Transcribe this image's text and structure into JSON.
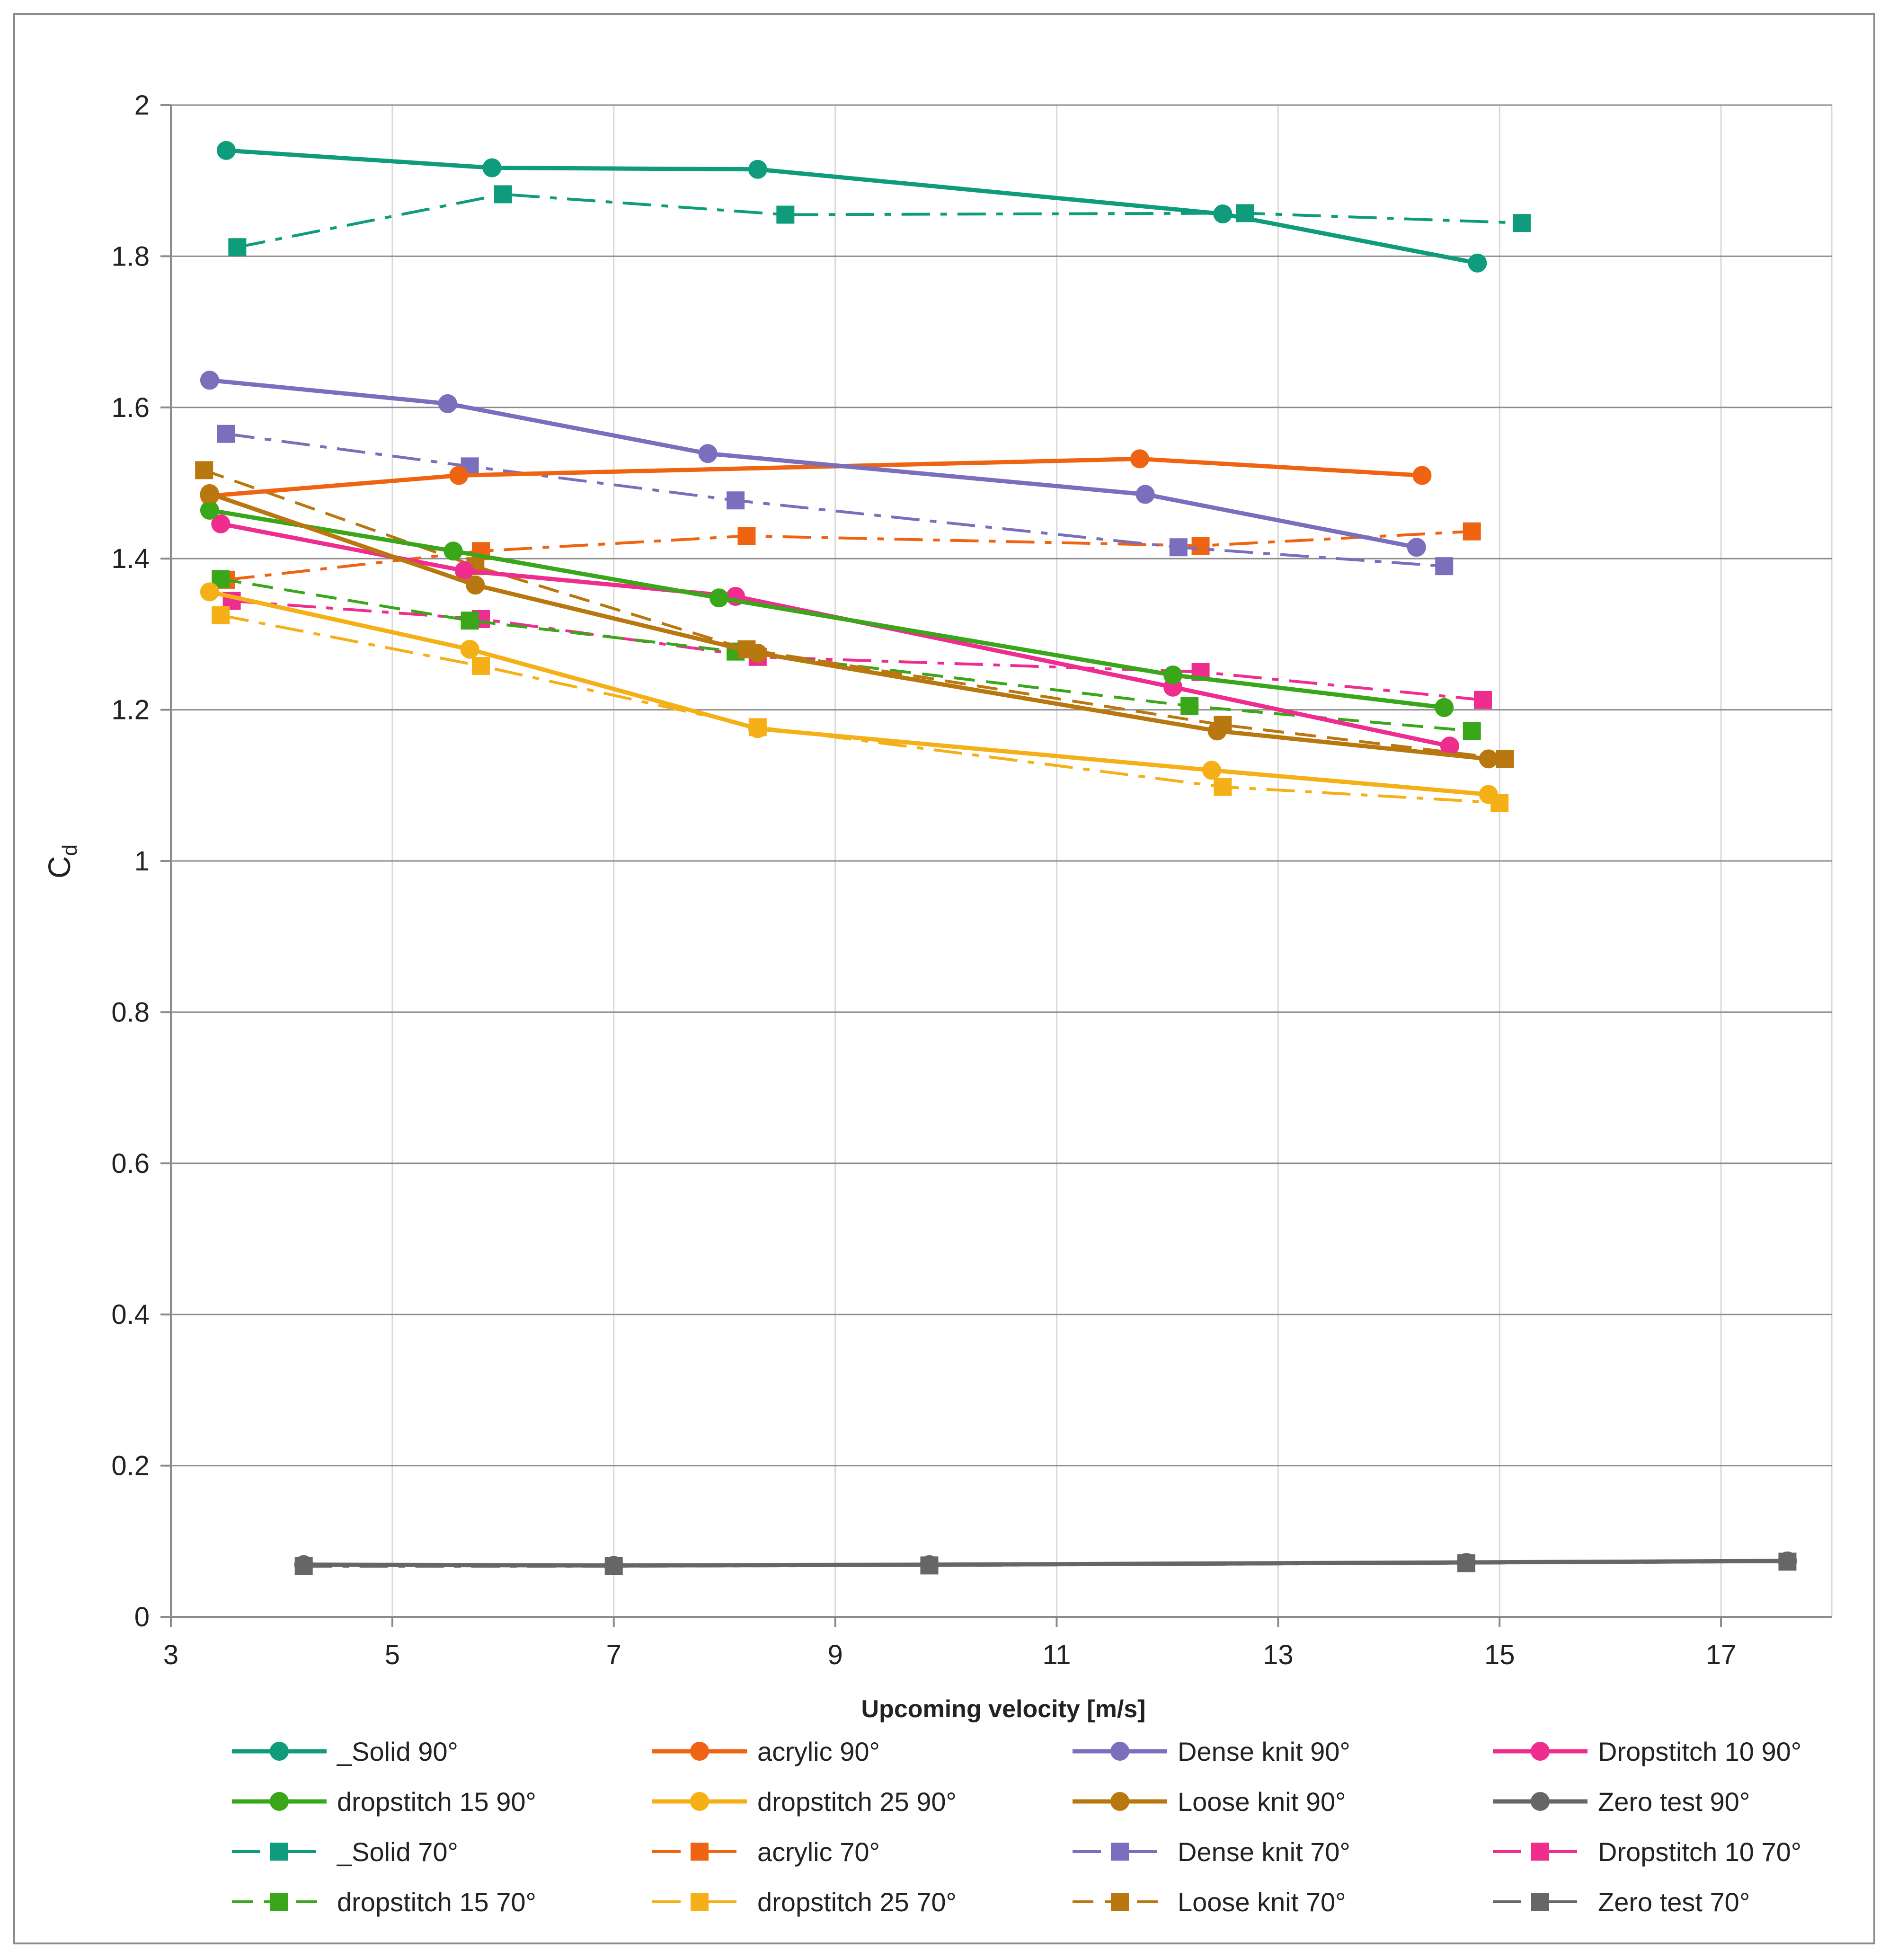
{
  "chart_data": {
    "type": "line",
    "title": "",
    "xlabel": "Upcoming velocity [m/s]",
    "ylabel_main": "C",
    "ylabel_sub": "d",
    "xlim": [
      3,
      18
    ],
    "ylim": [
      0,
      2
    ],
    "xticks": [
      3,
      5,
      7,
      9,
      11,
      13,
      15,
      17
    ],
    "yticks": [
      0,
      0.2,
      0.4,
      0.6,
      0.8,
      1,
      1.2,
      1.4,
      1.6,
      1.8,
      2
    ],
    "ytick_labels": [
      "0",
      "0.2",
      "0.4",
      "0.6",
      "0.8",
      "1",
      "1.2",
      "1.4",
      "1.6",
      "1.8",
      "2"
    ],
    "grid": true,
    "legend_placement": "bottom",
    "series": [
      {
        "name": "_Solid 90°",
        "color": "#0f9c7c",
        "marker": "circle",
        "dash": "solid",
        "x": [
          3.5,
          5.9,
          8.3,
          12.5,
          14.8
        ],
        "y": [
          1.94,
          1.917,
          1.915,
          1.856,
          1.791
        ]
      },
      {
        "name": "acrylic 90°",
        "color": "#ef6412",
        "marker": "circle",
        "dash": "solid",
        "x": [
          3.35,
          5.6,
          11.75,
          14.3
        ],
        "y": [
          1.483,
          1.51,
          1.532,
          1.51
        ]
      },
      {
        "name": "Dense knit 90°",
        "color": "#7b6fbd",
        "marker": "circle",
        "dash": "solid",
        "x": [
          3.35,
          5.5,
          7.85,
          11.8,
          14.25
        ],
        "y": [
          1.636,
          1.605,
          1.539,
          1.485,
          1.415
        ]
      },
      {
        "name": "Dropstitch 10 90°",
        "color": "#ee2d8f",
        "marker": "circle",
        "dash": "solid",
        "x": [
          3.45,
          5.65,
          8.1,
          12.05,
          14.55
        ],
        "y": [
          1.446,
          1.384,
          1.35,
          1.23,
          1.152
        ]
      },
      {
        "name": "dropstitch 15 90°",
        "color": "#3aa61a",
        "marker": "circle",
        "dash": "solid",
        "x": [
          3.35,
          5.55,
          7.95,
          12.05,
          14.5
        ],
        "y": [
          1.464,
          1.41,
          1.348,
          1.246,
          1.203
        ]
      },
      {
        "name": "dropstitch 25 90°",
        "color": "#f5b017",
        "marker": "circle",
        "dash": "solid",
        "x": [
          3.35,
          5.7,
          8.3,
          12.4,
          14.9
        ],
        "y": [
          1.356,
          1.28,
          1.175,
          1.12,
          1.088
        ]
      },
      {
        "name": "Loose knit 90°",
        "color": "#b8770f",
        "marker": "circle",
        "dash": "solid",
        "x": [
          3.35,
          5.75,
          8.3,
          12.45,
          14.9
        ],
        "y": [
          1.486,
          1.365,
          1.275,
          1.172,
          1.135
        ]
      },
      {
        "name": "Zero test 90°",
        "color": "#666666",
        "marker": "circle",
        "dash": "solid",
        "x": [
          4.2,
          7.0,
          9.85,
          14.7,
          17.6
        ],
        "y": [
          0.069,
          0.068,
          0.069,
          0.072,
          0.074
        ]
      },
      {
        "name": "_Solid 70°",
        "color": "#0f9c7c",
        "marker": "square",
        "dash": "dashdot",
        "x": [
          3.6,
          6.0,
          8.55,
          12.7,
          15.2
        ],
        "y": [
          1.812,
          1.882,
          1.855,
          1.857,
          1.844
        ]
      },
      {
        "name": "acrylic 70°",
        "color": "#ef6412",
        "marker": "square",
        "dash": "dashdot",
        "x": [
          3.5,
          5.8,
          8.2,
          12.3,
          14.75
        ],
        "y": [
          1.372,
          1.41,
          1.43,
          1.417,
          1.436
        ]
      },
      {
        "name": "Dense knit 70°",
        "color": "#7b6fbd",
        "marker": "square",
        "dash": "dashdot",
        "x": [
          3.5,
          5.7,
          8.1,
          12.1,
          14.5
        ],
        "y": [
          1.565,
          1.522,
          1.477,
          1.415,
          1.39
        ]
      },
      {
        "name": "Dropstitch 10 70°",
        "color": "#ee2d8f",
        "marker": "square",
        "dash": "dashdot",
        "x": [
          3.55,
          5.8,
          8.3,
          12.3,
          14.85
        ],
        "y": [
          1.344,
          1.32,
          1.27,
          1.25,
          1.213
        ]
      },
      {
        "name": "dropstitch 15 70°",
        "color": "#3aa61a",
        "marker": "square",
        "dash": "dash",
        "x": [
          3.45,
          5.7,
          8.1,
          12.2,
          14.75
        ],
        "y": [
          1.373,
          1.318,
          1.277,
          1.205,
          1.172
        ]
      },
      {
        "name": "dropstitch 25 70°",
        "color": "#f5b017",
        "marker": "square",
        "dash": "dashdot",
        "x": [
          3.45,
          5.8,
          8.3,
          12.5,
          15.0
        ],
        "y": [
          1.325,
          1.258,
          1.177,
          1.098,
          1.077
        ]
      },
      {
        "name": "Loose knit 70°",
        "color": "#b8770f",
        "marker": "square",
        "dash": "dash",
        "x": [
          3.3,
          5.75,
          8.2,
          12.5,
          15.05
        ],
        "y": [
          1.517,
          1.39,
          1.28,
          1.18,
          1.135
        ]
      },
      {
        "name": "Zero test 70°",
        "color": "#666666",
        "marker": "square",
        "dash": "dashdot",
        "x": [
          4.2,
          7.0,
          9.85,
          14.7,
          17.6
        ],
        "y": [
          0.067,
          0.067,
          0.068,
          0.071,
          0.073
        ]
      }
    ]
  }
}
